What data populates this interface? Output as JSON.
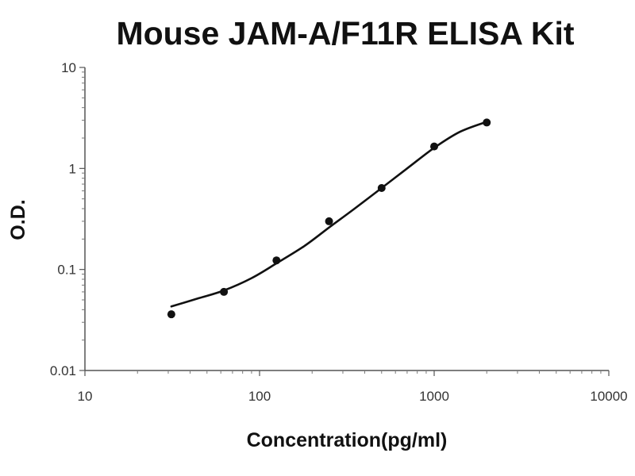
{
  "chart_data": {
    "type": "scatter",
    "title": "Mouse JAM-A/F11R ELISA Kit",
    "xlabel": "Concentration(pg/ml)",
    "ylabel": "O.D.",
    "xscale": "log",
    "yscale": "log",
    "xlim": [
      10,
      10000
    ],
    "ylim": [
      0.01,
      10
    ],
    "x_ticks": [
      "10",
      "100",
      "1000",
      "10000"
    ],
    "y_ticks": [
      "0.01",
      "0.1",
      "1",
      "10"
    ],
    "grid": false,
    "legend": "none",
    "series": [
      {
        "x": [
          31.25,
          62.5,
          125,
          250,
          500,
          1000,
          2000
        ],
        "y": [
          0.036,
          0.06,
          0.123,
          0.3,
          0.64,
          1.65,
          2.85
        ]
      }
    ],
    "fit_curve": {
      "x": [
        31.25,
        45,
        62.5,
        90,
        125,
        180,
        250,
        350,
        500,
        700,
        1000,
        1400,
        2000
      ],
      "y": [
        0.043,
        0.052,
        0.062,
        0.082,
        0.115,
        0.17,
        0.26,
        0.4,
        0.64,
        1.0,
        1.6,
        2.3,
        2.9
      ]
    }
  }
}
